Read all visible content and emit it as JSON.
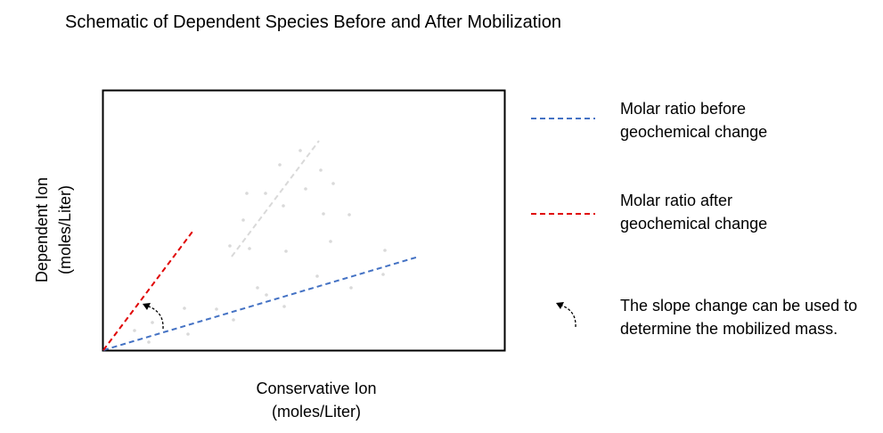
{
  "title": "Schematic of Dependent Species Before and After Mobilization",
  "axes": {
    "xlabel_line1": "Conservative Ion",
    "xlabel_line2": "(moles/Liter)",
    "ylabel_line1": "Dependent Ion",
    "ylabel_line2": "(moles/Liter)"
  },
  "legend": {
    "before": {
      "line1": "Molar ratio before",
      "line2": "geochemical change",
      "color": "#4472c4"
    },
    "after": {
      "line1": "Molar ratio after",
      "line2": "geochemical change",
      "color": "#e00000"
    },
    "slope": {
      "line1": "The slope change can be used to",
      "line2": "determine the mobilized mass.",
      "icon": "curved-arrow-icon"
    }
  },
  "colors": {
    "frame": "#000000",
    "scatter": "#d9d9d9",
    "scatter_trend": "#d9d9d9",
    "arrow": "#000000"
  }
}
